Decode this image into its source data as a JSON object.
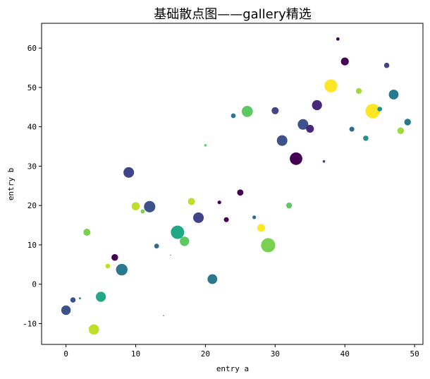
{
  "chart_data": {
    "type": "scatter",
    "title": "基础散点图——gallery精选",
    "xlabel": "entry a",
    "ylabel": "entry b",
    "xlim": [
      -3.5,
      51.2
    ],
    "ylim": [
      -15.3,
      66.3
    ],
    "xticks": [
      0,
      10,
      20,
      30,
      40,
      50
    ],
    "yticks": [
      -10,
      0,
      10,
      20,
      30,
      40,
      50,
      60
    ],
    "grid": false,
    "colormap": "viridis",
    "points": [
      {
        "x": 0,
        "y": -6.6,
        "size": 80,
        "color": "#3b528b"
      },
      {
        "x": 1,
        "y": -4.0,
        "size": 25,
        "color": "#3b528b"
      },
      {
        "x": 2,
        "y": -3.6,
        "size": 4,
        "color": "#21918c"
      },
      {
        "x": 3,
        "y": 13.2,
        "size": 45,
        "color": "#7ad151"
      },
      {
        "x": 4,
        "y": -11.5,
        "size": 95,
        "color": "#bddf26"
      },
      {
        "x": 5,
        "y": -3.2,
        "size": 90,
        "color": "#22a884"
      },
      {
        "x": 6,
        "y": 4.6,
        "size": 20,
        "color": "#bddf26"
      },
      {
        "x": 7,
        "y": 6.8,
        "size": 40,
        "color": "#440154"
      },
      {
        "x": 8,
        "y": 3.7,
        "size": 120,
        "color": "#2a788e"
      },
      {
        "x": 9,
        "y": 28.4,
        "size": 100,
        "color": "#414487"
      },
      {
        "x": 10,
        "y": 19.8,
        "size": 60,
        "color": "#bddf26"
      },
      {
        "x": 11,
        "y": 18.5,
        "size": 15,
        "color": "#7ad151"
      },
      {
        "x": 12,
        "y": 19.7,
        "size": 115,
        "color": "#3b528b"
      },
      {
        "x": 13,
        "y": 9.7,
        "size": 20,
        "color": "#31688e"
      },
      {
        "x": 14,
        "y": -8.0,
        "size": 1,
        "color": "#3b528b"
      },
      {
        "x": 15,
        "y": 7.4,
        "size": 0.5,
        "color": "#414487"
      },
      {
        "x": 16,
        "y": 13.2,
        "size": 160,
        "color": "#22a884"
      },
      {
        "x": 17,
        "y": 10.9,
        "size": 80,
        "color": "#5ec962"
      },
      {
        "x": 18,
        "y": 21.0,
        "size": 45,
        "color": "#bddf26"
      },
      {
        "x": 19,
        "y": 16.9,
        "size": 100,
        "color": "#414487"
      },
      {
        "x": 20,
        "y": 35.3,
        "size": 5,
        "color": "#5ec962"
      },
      {
        "x": 21,
        "y": 1.3,
        "size": 85,
        "color": "#2a788e"
      },
      {
        "x": 22,
        "y": 20.8,
        "size": 12,
        "color": "#440154"
      },
      {
        "x": 23,
        "y": 16.4,
        "size": 22,
        "color": "#440154"
      },
      {
        "x": 24,
        "y": 42.8,
        "size": 20,
        "color": "#2a788e"
      },
      {
        "x": 25,
        "y": 23.3,
        "size": 35,
        "color": "#440154"
      },
      {
        "x": 26,
        "y": 43.9,
        "size": 110,
        "color": "#5ec962"
      },
      {
        "x": 27,
        "y": 17.0,
        "size": 12,
        "color": "#31688e"
      },
      {
        "x": 28,
        "y": 14.3,
        "size": 55,
        "color": "#fde725"
      },
      {
        "x": 29,
        "y": 9.9,
        "size": 180,
        "color": "#7ad151"
      },
      {
        "x": 30,
        "y": 44.1,
        "size": 45,
        "color": "#414487"
      },
      {
        "x": 31,
        "y": 36.5,
        "size": 100,
        "color": "#3b528b"
      },
      {
        "x": 32,
        "y": 20.0,
        "size": 30,
        "color": "#5ec962"
      },
      {
        "x": 33,
        "y": 31.9,
        "size": 140,
        "color": "#440154"
      },
      {
        "x": 34,
        "y": 40.6,
        "size": 100,
        "color": "#3b528b"
      },
      {
        "x": 35,
        "y": 39.5,
        "size": 55,
        "color": "#482878"
      },
      {
        "x": 36,
        "y": 45.5,
        "size": 90,
        "color": "#482878"
      },
      {
        "x": 37,
        "y": 31.2,
        "size": 6,
        "color": "#414487"
      },
      {
        "x": 38,
        "y": 50.4,
        "size": 150,
        "color": "#fde725"
      },
      {
        "x": 39,
        "y": 62.3,
        "size": 10,
        "color": "#440154"
      },
      {
        "x": 40,
        "y": 56.6,
        "size": 55,
        "color": "#440154"
      },
      {
        "x": 41,
        "y": 39.4,
        "size": 22,
        "color": "#31688e"
      },
      {
        "x": 42,
        "y": 49.1,
        "size": 30,
        "color": "#a0da39"
      },
      {
        "x": 43,
        "y": 37.1,
        "size": 25,
        "color": "#21918c"
      },
      {
        "x": 44,
        "y": 44.0,
        "size": 190,
        "color": "#fde725"
      },
      {
        "x": 45,
        "y": 44.5,
        "size": 20,
        "color": "#21918c"
      },
      {
        "x": 46,
        "y": 55.6,
        "size": 25,
        "color": "#414487"
      },
      {
        "x": 47,
        "y": 48.2,
        "size": 85,
        "color": "#2a788e"
      },
      {
        "x": 48,
        "y": 39.0,
        "size": 40,
        "color": "#a0da39"
      },
      {
        "x": 49,
        "y": 41.2,
        "size": 40,
        "color": "#2a788e"
      }
    ]
  }
}
